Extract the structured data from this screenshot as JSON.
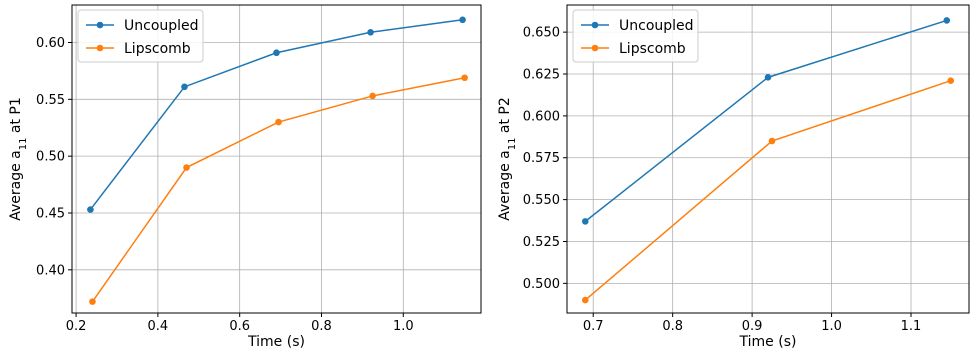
{
  "chart_data": [
    {
      "type": "line",
      "xlabel": "Time (s)",
      "ylabel": "Average a",
      "ylabel_sub": "11",
      "ylabel_suffix": " at P1",
      "xlim": [
        0.19,
        1.19
      ],
      "ylim": [
        0.362,
        0.633
      ],
      "xticks": [
        0.2,
        0.4,
        0.6,
        0.8,
        1.0
      ],
      "xtick_labels": [
        "0.2",
        "0.4",
        "0.6",
        "0.8",
        "1.0"
      ],
      "yticks": [
        0.4,
        0.45,
        0.5,
        0.55,
        0.6
      ],
      "ytick_labels": [
        "0.40",
        "0.45",
        "0.50",
        "0.55",
        "0.60"
      ],
      "grid": true,
      "legend": "top-left",
      "series": [
        {
          "name": "Uncoupled",
          "color": "#1f77b4",
          "x": [
            0.235,
            0.465,
            0.69,
            0.92,
            1.145
          ],
          "y": [
            0.453,
            0.561,
            0.591,
            0.609,
            0.62
          ]
        },
        {
          "name": "Lipscomb",
          "color": "#ff7f0e",
          "x": [
            0.24,
            0.47,
            0.695,
            0.925,
            1.15
          ],
          "y": [
            0.372,
            0.49,
            0.53,
            0.553,
            0.569
          ]
        }
      ]
    },
    {
      "type": "line",
      "xlabel": "Time (s)",
      "ylabel": "Average a",
      "ylabel_sub": "11",
      "ylabel_suffix": " at P2",
      "xlim": [
        0.667,
        1.173
      ],
      "ylim": [
        0.4823,
        0.6662
      ],
      "xticks": [
        0.7,
        0.8,
        0.9,
        1.0,
        1.1
      ],
      "xtick_labels": [
        "0.7",
        "0.8",
        "0.9",
        "1.0",
        "1.1"
      ],
      "yticks": [
        0.5,
        0.525,
        0.55,
        0.575,
        0.6,
        0.625,
        0.65
      ],
      "ytick_labels": [
        "0.500",
        "0.525",
        "0.550",
        "0.575",
        "0.600",
        "0.625",
        "0.650"
      ],
      "grid": true,
      "legend": "top-left",
      "series": [
        {
          "name": "Uncoupled",
          "color": "#1f77b4",
          "x": [
            0.69,
            0.92,
            1.145
          ],
          "y": [
            0.537,
            0.623,
            0.657
          ]
        },
        {
          "name": "Lipscomb",
          "color": "#ff7f0e",
          "x": [
            0.69,
            0.925,
            1.15
          ],
          "y": [
            0.49,
            0.585,
            0.621
          ]
        }
      ]
    }
  ]
}
